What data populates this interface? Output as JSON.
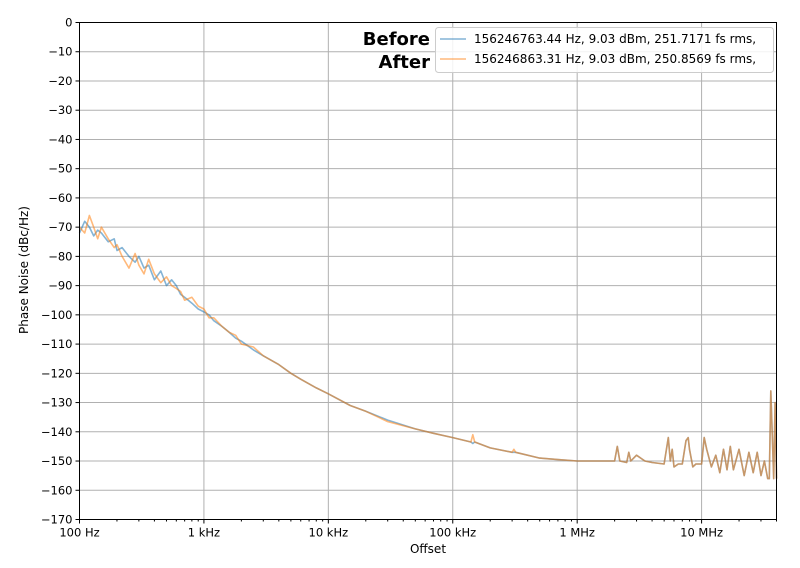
{
  "chart_data": {
    "type": "line",
    "xlabel": "Offset",
    "ylabel": "Phase Noise (dBc/Hz)",
    "xscale": "log",
    "xlim": [
      100,
      40000000
    ],
    "ylim": [
      -170,
      0
    ],
    "grid": true,
    "legend_placement": "top-right",
    "x_ticks": [
      100,
      1000,
      10000,
      100000,
      1000000,
      10000000
    ],
    "x_tick_labels": [
      "100 Hz",
      "1 kHz",
      "10 kHz",
      "100 kHz",
      "1 MHz",
      "10 MHz"
    ],
    "y_ticks": [
      0,
      -10,
      -20,
      -30,
      -40,
      -50,
      -60,
      -70,
      -80,
      -90,
      -100,
      -110,
      -120,
      -130,
      -140,
      -150,
      -160,
      -170
    ],
    "annotations": [
      "Before",
      "After"
    ],
    "x": [
      100,
      110,
      120,
      130,
      140,
      150,
      170,
      190,
      200,
      220,
      250,
      280,
      300,
      330,
      360,
      400,
      450,
      500,
      550,
      600,
      650,
      700,
      800,
      900,
      1000,
      1100,
      1200,
      1400,
      1600,
      1800,
      2000,
      2500,
      3000,
      4000,
      5000,
      6000,
      8000,
      10000,
      15000,
      20000,
      30000,
      50000,
      70000,
      100000,
      140000,
      145000,
      150000,
      200000,
      300000,
      310000,
      320000,
      500000,
      700000,
      1000000,
      1500000,
      2000000,
      2100000,
      2200000,
      2500000,
      2600000,
      2700000,
      3000000,
      3500000,
      4000000,
      5000000,
      5400000,
      5600000,
      5800000,
      6000000,
      6500000,
      7000000,
      7500000,
      7800000,
      8000000,
      8500000,
      9000000,
      10000000,
      10500000,
      11000000,
      12000000,
      13000000,
      14000000,
      15000000,
      16000000,
      17000000,
      18000000,
      20000000,
      22000000,
      24000000,
      26000000,
      28000000,
      30000000,
      32000000,
      34000000,
      35000000,
      36000000,
      38000000,
      39000000,
      40000000
    ],
    "series": [
      {
        "name": "156246763.44 Hz, 9.03 dBm, 251.7171 fs rms,",
        "color": "#1f77b4",
        "values": [
          -72,
          -68,
          -70,
          -73,
          -71,
          -72,
          -75,
          -74,
          -78,
          -77,
          -80,
          -82,
          -80,
          -84,
          -83,
          -88,
          -85,
          -90,
          -88,
          -90,
          -93,
          -94,
          -96,
          -98,
          -99,
          -100,
          -102,
          -104,
          -106,
          -108,
          -109,
          -112,
          -114,
          -117,
          -120,
          -122,
          -125,
          -127,
          -131,
          -133,
          -136,
          -139,
          -140.5,
          -142,
          -143.5,
          -144,
          -143.5,
          -145.5,
          -147,
          -147,
          -147,
          -149,
          -149.5,
          -150,
          -150,
          -150,
          -145,
          -150,
          -150.5,
          -147,
          -150,
          -148,
          -150,
          -150.5,
          -151,
          -142,
          -150,
          -146,
          -152,
          -151,
          -151,
          -143,
          -142,
          -146,
          -152,
          -151,
          -151,
          -142,
          -146,
          -152,
          -148,
          -154,
          -146,
          -153,
          -145,
          -153,
          -146,
          -155,
          -147,
          -154,
          -147,
          -155,
          -150,
          -156,
          -156,
          -126,
          -156,
          -130,
          -156
        ]
      },
      {
        "name": "156246863.31 Hz, 9.03 dBm, 250.8569 fs rms,",
        "color": "#ff7f0e",
        "values": [
          -70,
          -72,
          -66,
          -70,
          -74,
          -70,
          -74,
          -77,
          -76,
          -80,
          -84,
          -79,
          -83,
          -86,
          -81,
          -86,
          -89,
          -87,
          -90,
          -91,
          -92,
          -95,
          -94,
          -97,
          -98,
          -101,
          -101,
          -104,
          -106,
          -107,
          -110,
          -111,
          -114,
          -117,
          -120,
          -122,
          -125,
          -127,
          -131,
          -133,
          -136.5,
          -139,
          -140.5,
          -142,
          -143.5,
          -141,
          -143.5,
          -145.5,
          -147,
          -146,
          -147,
          -149,
          -149.5,
          -150,
          -150,
          -150,
          -145,
          -150,
          -150.5,
          -147,
          -150,
          -148,
          -150,
          -150.5,
          -151,
          -142,
          -150,
          -146,
          -152,
          -151,
          -151,
          -143,
          -142,
          -146,
          -152,
          -151,
          -151,
          -142,
          -146,
          -152,
          -148,
          -154,
          -146,
          -153,
          -145,
          -153,
          -146,
          -155,
          -147,
          -154,
          -147,
          -155,
          -150,
          -156,
          -156,
          -126,
          -156,
          -130,
          -156
        ]
      }
    ]
  }
}
